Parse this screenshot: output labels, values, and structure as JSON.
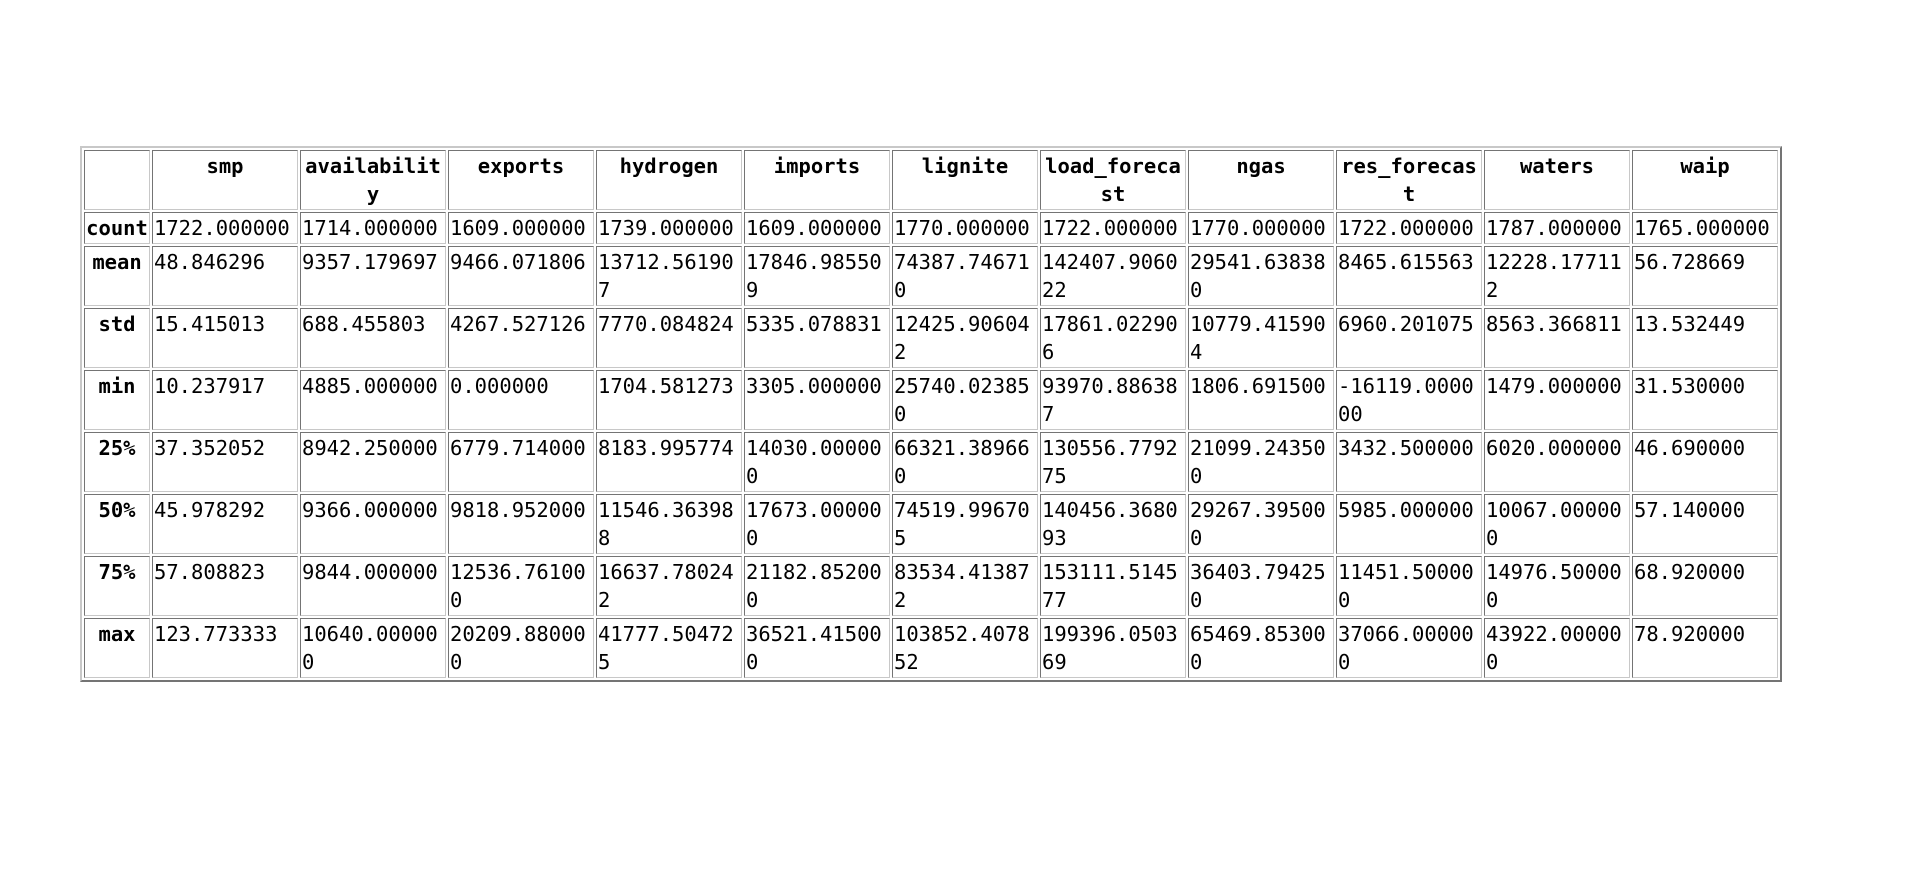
{
  "table": {
    "corner": "",
    "columns": [
      "smp",
      "availability",
      "exports",
      "hydrogen",
      "imports",
      "lignite",
      "load_forecast",
      "ngas",
      "res_forecast",
      "waters",
      "waip"
    ],
    "rows": [
      {
        "label": "count",
        "values": [
          "1722.000000",
          "1714.000000",
          "1609.000000",
          "1739.000000",
          "1609.000000",
          "1770.000000",
          "1722.000000",
          "1770.000000",
          "1722.000000",
          "1787.000000",
          "1765.000000"
        ]
      },
      {
        "label": "mean",
        "values": [
          "48.846296",
          "9357.179697",
          "9466.071806",
          "13712.561907",
          "17846.985509",
          "74387.746710",
          "142407.906022",
          "29541.638380",
          "8465.615563",
          "12228.177112",
          "56.728669"
        ]
      },
      {
        "label": "std",
        "values": [
          "15.415013",
          "688.455803",
          "4267.527126",
          "7770.084824",
          "5335.078831",
          "12425.906042",
          "17861.022906",
          "10779.415904",
          "6960.201075",
          "8563.366811",
          "13.532449"
        ]
      },
      {
        "label": "min",
        "values": [
          "10.237917",
          "4885.000000",
          "0.000000",
          "1704.581273",
          "3305.000000",
          "25740.023850",
          "93970.886387",
          "1806.691500",
          "-16119.000000",
          "1479.000000",
          "31.530000"
        ]
      },
      {
        "label": "25%",
        "values": [
          "37.352052",
          "8942.250000",
          "6779.714000",
          "8183.995774",
          "14030.000000",
          "66321.389660",
          "130556.779275",
          "21099.243500",
          "3432.500000",
          "6020.000000",
          "46.690000"
        ]
      },
      {
        "label": "50%",
        "values": [
          "45.978292",
          "9366.000000",
          "9818.952000",
          "11546.363988",
          "17673.000000",
          "74519.996705",
          "140456.368093",
          "29267.395000",
          "5985.000000",
          "10067.000000",
          "57.140000"
        ]
      },
      {
        "label": "75%",
        "values": [
          "57.808823",
          "9844.000000",
          "12536.761000",
          "16637.780242",
          "21182.852000",
          "83534.413872",
          "153111.514577",
          "36403.794250",
          "11451.500000",
          "14976.500000",
          "68.920000"
        ]
      },
      {
        "label": "max",
        "values": [
          "123.773333",
          "10640.000000",
          "20209.880000",
          "41777.504725",
          "36521.415000",
          "103852.407852",
          "199396.050369",
          "65469.853000",
          "37066.000000",
          "43922.000000",
          "78.920000"
        ]
      }
    ]
  }
}
